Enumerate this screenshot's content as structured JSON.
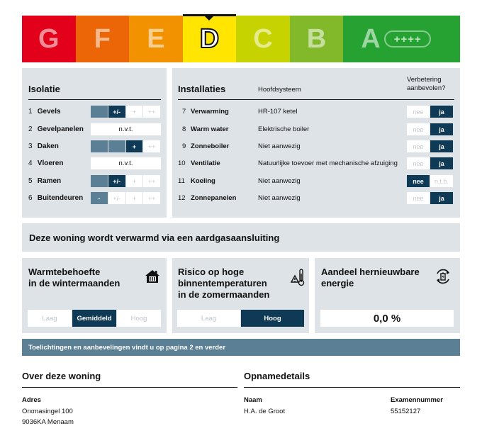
{
  "label": {
    "classes": [
      {
        "letter": "G",
        "color": "#e2001a"
      },
      {
        "letter": "F",
        "color": "#ec6608"
      },
      {
        "letter": "E",
        "color": "#f39200"
      },
      {
        "letter": "D",
        "color": "#ffe500"
      },
      {
        "letter": "C",
        "color": "#c7d300"
      },
      {
        "letter": "B",
        "color": "#82b92a"
      },
      {
        "letter": "A",
        "color": "#26a233"
      }
    ],
    "active": "D",
    "plus_text": "++++"
  },
  "isolatie": {
    "title": "Isolatie",
    "rows": [
      {
        "num": "1",
        "name": "Gevels",
        "cells": [
          "",
          "+/-",
          "+",
          "++"
        ],
        "on": 2
      },
      {
        "num": "2",
        "name": "Gevelpanelen",
        "single": "n.v.t."
      },
      {
        "num": "3",
        "name": "Daken",
        "cells": [
          "",
          "",
          "+",
          "++"
        ],
        "on": 3
      },
      {
        "num": "4",
        "name": "Vloeren",
        "single": "n.v.t."
      },
      {
        "num": "5",
        "name": "Ramen",
        "cells": [
          "",
          "+/-",
          "+",
          "++"
        ],
        "on": 2
      },
      {
        "num": "6",
        "name": "Buitendeuren",
        "cells": [
          "-",
          "+/-",
          "+",
          "++"
        ],
        "on": 1
      }
    ]
  },
  "installaties": {
    "title": "Installaties",
    "col_system": "Hoofdsysteem",
    "col_advice": "Verbetering aanbevolen?",
    "rows": [
      {
        "num": "7",
        "name": "Verwarming",
        "system": "HR-107 ketel",
        "left": "nee",
        "right": "ja",
        "sel": "right"
      },
      {
        "num": "8",
        "name": "Warm water",
        "system": "Elektrische boiler",
        "left": "nee",
        "right": "ja",
        "sel": "right"
      },
      {
        "num": "9",
        "name": "Zonneboiler",
        "system": "Niet aanwezig",
        "left": "nee",
        "right": "ja",
        "sel": "right"
      },
      {
        "num": "10",
        "name": "Ventilatie",
        "system": "Natuurlijke toevoer met mechanische afzuiging",
        "left": "nee",
        "right": "ja",
        "sel": "right"
      },
      {
        "num": "11",
        "name": "Koeling",
        "system": "Niet aanwezig",
        "left": "nee",
        "right": "n.t.b.",
        "sel": "left"
      },
      {
        "num": "12",
        "name": "Zonnepanelen",
        "system": "Niet aanwezig",
        "left": "nee",
        "right": "ja",
        "sel": "right"
      }
    ]
  },
  "heating": {
    "text": "Deze woning wordt verwarmd via een aardgasaansluiting"
  },
  "warmte": {
    "title_1": "Warmtebehoefte",
    "title_2": "in de wintermaanden",
    "options": [
      "Laag",
      "Gemiddeld",
      "Hoog"
    ],
    "selected": 1
  },
  "risico": {
    "title_1": "Risico op hoge",
    "title_2": "binnentemperaturen",
    "title_3": "in de zomermaanden",
    "options": [
      "Laag",
      "Hoog"
    ],
    "selected": 1
  },
  "hernieuwbaar": {
    "title_1": "Aandeel hernieuwbare",
    "title_2": "energie",
    "value": "0,0 %"
  },
  "banner": {
    "text": "Toelichtingen en aanbevelingen vindt u op pagina 2 en verder"
  },
  "woning": {
    "title": "Over deze woning",
    "address_label": "Adres",
    "address_1": "Orxmasingel 100",
    "address_2": "9036KA Menaam"
  },
  "opname": {
    "title": "Opnamedetails",
    "name_label": "Naam",
    "name": "H.A. de Groot",
    "exam_label": "Examennummer",
    "exam": "55152127"
  }
}
